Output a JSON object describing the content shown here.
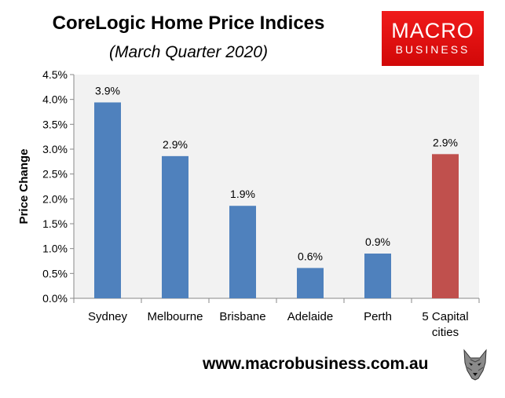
{
  "header": {
    "title": "CoreLogic Home Price Indices",
    "subtitle": "(March Quarter 2020)"
  },
  "logo": {
    "line1": "MACRO",
    "line2": "BUSINESS",
    "color": "#e50f0f"
  },
  "footer": {
    "url": "www.macrobusiness.com.au",
    "icon": "wolf-head-icon"
  },
  "chart_data": {
    "type": "bar",
    "categories": [
      "Sydney",
      "Melbourne",
      "Brisbane",
      "Adelaide",
      "Perth",
      "5 Capital cities"
    ],
    "category_lines": [
      [
        "Sydney"
      ],
      [
        "Melbourne"
      ],
      [
        "Brisbane"
      ],
      [
        "Adelaide"
      ],
      [
        "Perth"
      ],
      [
        "5 Capital",
        "cities"
      ]
    ],
    "values": [
      3.94,
      2.86,
      1.86,
      0.61,
      0.9,
      2.9
    ],
    "data_labels": [
      "3.9%",
      "2.9%",
      "1.9%",
      "0.6%",
      "0.9%",
      "2.9%"
    ],
    "bar_colors": [
      "#4f81bd",
      "#4f81bd",
      "#4f81bd",
      "#4f81bd",
      "#4f81bd",
      "#c0504d"
    ],
    "ylabel": "Price Change",
    "ylim": [
      0,
      4.5
    ],
    "yticks": [
      0,
      0.5,
      1.0,
      1.5,
      2.0,
      2.5,
      3.0,
      3.5,
      4.0,
      4.5
    ],
    "ytick_labels": [
      "0.0%",
      "0.5%",
      "1.0%",
      "1.5%",
      "2.0%",
      "2.5%",
      "3.0%",
      "3.5%",
      "4.0%",
      "4.5%"
    ],
    "grid": false,
    "legend": "none",
    "plot_background": "#f2f2f2"
  }
}
